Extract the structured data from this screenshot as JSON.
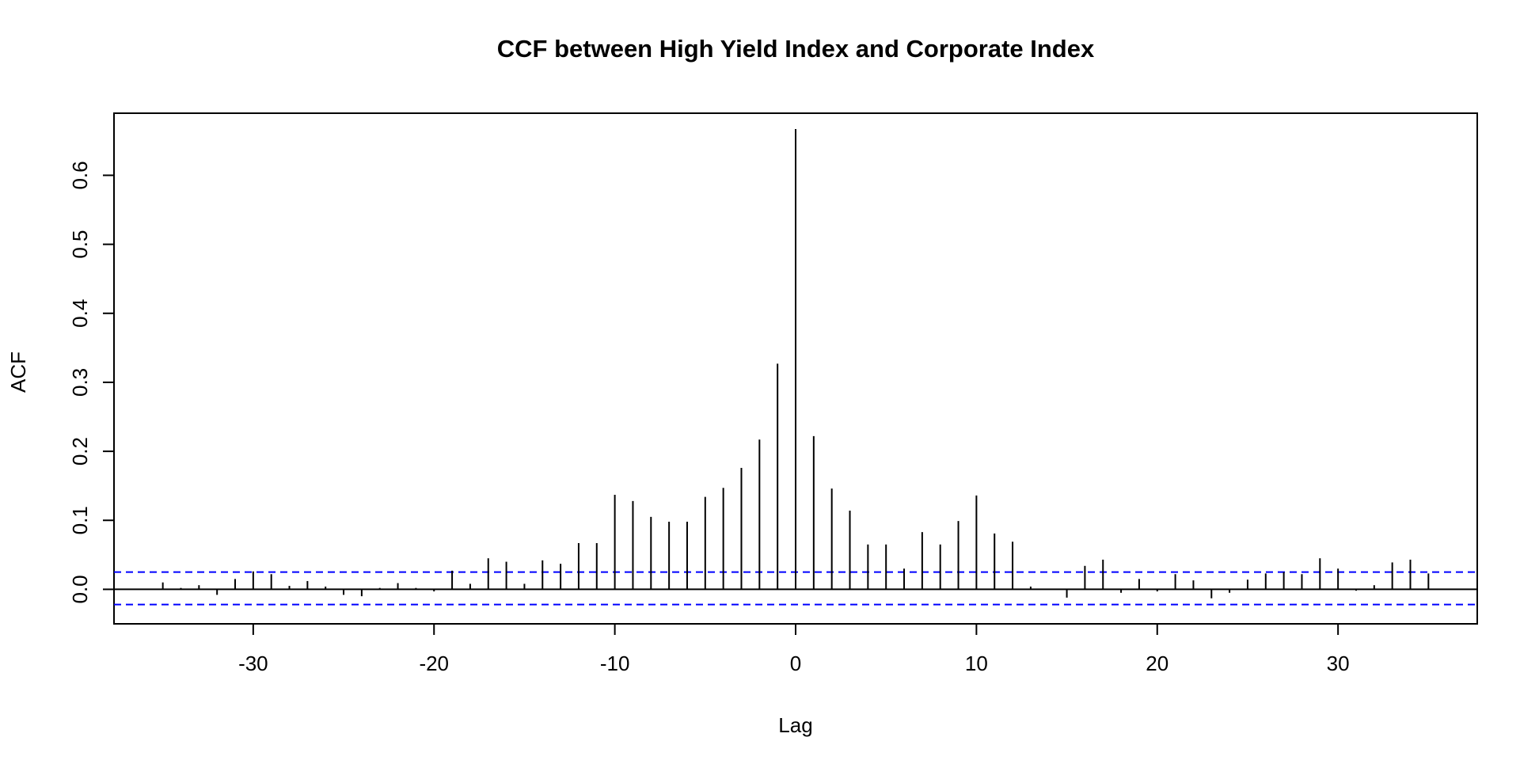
{
  "chart_data": {
    "type": "bar",
    "subtype": "cross-correlation stem plot",
    "title": "CCF between High Yield Index and Corporate Index",
    "xlabel": "Lag",
    "ylabel": "ACF",
    "xlim": [
      -37.7,
      37.7
    ],
    "ylim": [
      -0.05,
      0.69
    ],
    "x_ticks": [
      -30,
      -20,
      -10,
      0,
      10,
      20,
      30
    ],
    "x_tick_labels": [
      "-30",
      "-20",
      "-10",
      "0",
      "10",
      "20",
      "30"
    ],
    "y_ticks": [
      0.0,
      0.1,
      0.2,
      0.3,
      0.4,
      0.5,
      0.6
    ],
    "y_tick_labels": [
      "0.0",
      "0.1",
      "0.2",
      "0.3",
      "0.4",
      "0.5",
      "0.6"
    ],
    "grid": false,
    "zero_line": true,
    "confidence_limits": {
      "upper": 0.025,
      "lower": -0.022,
      "color": "#0000ff",
      "style": "dashed"
    },
    "stem_color": "#000000",
    "x": [
      -35,
      -34,
      -33,
      -32,
      -31,
      -30,
      -29,
      -28,
      -27,
      -26,
      -25,
      -24,
      -23,
      -22,
      -21,
      -20,
      -19,
      -18,
      -17,
      -16,
      -15,
      -14,
      -13,
      -12,
      -11,
      -10,
      -9,
      -8,
      -7,
      -6,
      -5,
      -4,
      -3,
      -2,
      -1,
      0,
      1,
      2,
      3,
      4,
      5,
      6,
      7,
      8,
      9,
      10,
      11,
      12,
      13,
      14,
      15,
      16,
      17,
      18,
      19,
      20,
      21,
      22,
      23,
      24,
      25,
      26,
      27,
      28,
      29,
      30,
      31,
      32,
      33,
      34,
      35
    ],
    "values": [
      0.01,
      0.002,
      0.006,
      -0.008,
      0.015,
      0.026,
      0.022,
      0.005,
      0.012,
      0.004,
      -0.008,
      -0.01,
      0.002,
      0.009,
      0.002,
      -0.003,
      0.027,
      0.008,
      0.045,
      0.04,
      0.008,
      0.042,
      0.037,
      0.067,
      0.067,
      0.137,
      0.128,
      0.105,
      0.098,
      0.098,
      0.134,
      0.147,
      0.176,
      0.217,
      0.327,
      0.667,
      0.222,
      0.146,
      0.114,
      0.065,
      0.065,
      0.03,
      0.083,
      0.065,
      0.099,
      0.136,
      0.081,
      0.069,
      0.004,
      0.0,
      -0.012,
      0.034,
      0.043,
      -0.005,
      0.015,
      -0.003,
      0.022,
      0.013,
      -0.013,
      -0.005,
      0.014,
      0.023,
      0.025,
      0.022,
      0.045,
      0.03,
      -0.002,
      0.006,
      0.039,
      0.043,
      0.023
    ]
  }
}
